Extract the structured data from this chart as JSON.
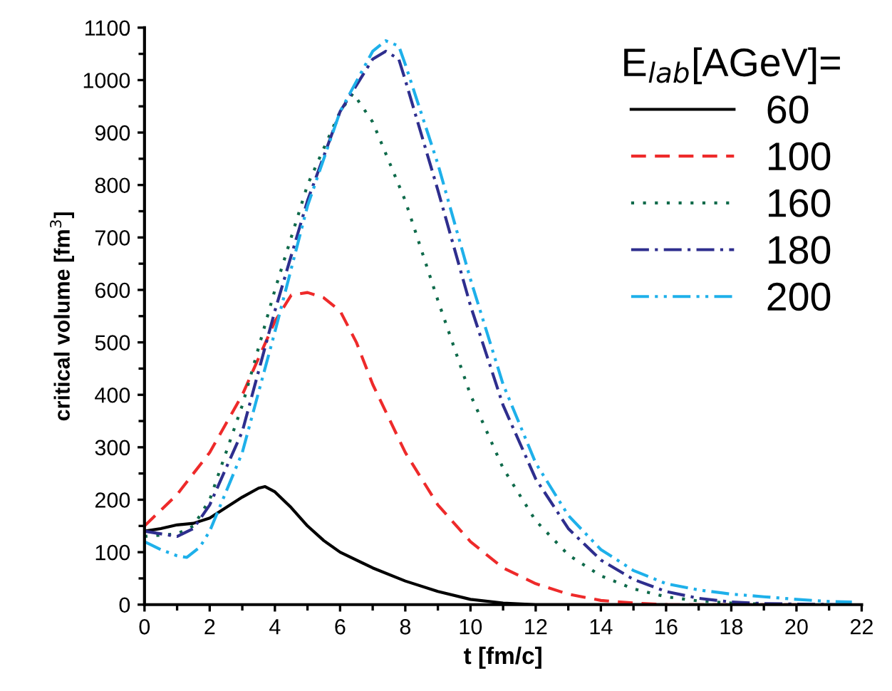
{
  "chart_data": {
    "type": "line",
    "xlabel": "t [fm/c]",
    "ylabel": "critical volume [fm$^{3}$]",
    "legend_title": "E$_{lab}$[AGeV]=",
    "legend": "top right",
    "xlim": [
      0,
      22
    ],
    "xticks": [
      0,
      2,
      4,
      6,
      8,
      10,
      12,
      14,
      16,
      18,
      20,
      22
    ],
    "ylim": [
      0,
      1100
    ],
    "yticks": [
      0,
      100,
      200,
      300,
      400,
      500,
      600,
      700,
      800,
      900,
      1000,
      1100
    ],
    "grid": false,
    "marker": "none",
    "series": [
      {
        "name": "60",
        "color": "#000000",
        "line_style": "solid",
        "x": [
          0,
          0.5,
          1,
          1.5,
          2,
          2.5,
          3,
          3.5,
          3.7,
          4,
          4.5,
          5,
          5.5,
          6,
          7,
          8,
          9,
          10,
          11,
          12,
          14,
          16
        ],
        "values": [
          140,
          145,
          152,
          155,
          165,
          185,
          205,
          222,
          225,
          215,
          185,
          150,
          122,
          100,
          70,
          45,
          25,
          10,
          3,
          0,
          0,
          0
        ]
      },
      {
        "name": "100",
        "color": "#ee2a2a",
        "line_style": "dashed",
        "x": [
          0,
          1,
          2,
          3,
          4,
          4.5,
          5,
          5.5,
          6,
          6.5,
          7,
          8,
          9,
          10,
          11,
          12,
          13,
          14,
          15,
          16,
          18,
          20
        ],
        "values": [
          150,
          210,
          290,
          400,
          540,
          590,
          595,
          585,
          560,
          500,
          420,
          290,
          190,
          120,
          70,
          40,
          20,
          8,
          3,
          0,
          0,
          0
        ]
      },
      {
        "name": "160",
        "color": "#0e6a4a",
        "line_style": "dotted",
        "x": [
          0,
          1,
          1.5,
          2,
          3,
          4,
          5,
          6,
          6.4,
          7,
          8,
          9,
          10,
          11,
          12,
          13,
          14,
          15,
          16,
          17,
          18,
          19,
          20,
          21
        ],
        "values": [
          130,
          135,
          150,
          200,
          380,
          600,
          800,
          940,
          975,
          920,
          770,
          580,
          400,
          260,
          160,
          95,
          55,
          30,
          15,
          7,
          3,
          1,
          0,
          0
        ]
      },
      {
        "name": "180",
        "color": "#2e2e8e",
        "line_style": "dashdot",
        "x": [
          0,
          0.5,
          1,
          1.5,
          2,
          3,
          4,
          5,
          6,
          7,
          7.4,
          7.8,
          8,
          9,
          10,
          11,
          12,
          13,
          14,
          15,
          16,
          17,
          18,
          19,
          20,
          21.5
        ],
        "values": [
          140,
          135,
          130,
          145,
          190,
          330,
          560,
          770,
          940,
          1040,
          1055,
          1040,
          1000,
          790,
          570,
          380,
          240,
          145,
          85,
          48,
          25,
          12,
          5,
          2,
          1,
          0
        ]
      },
      {
        "name": "200",
        "color": "#1eb0ea",
        "line_style": "dashdotdot",
        "x": [
          0,
          0.5,
          1,
          1.3,
          1.7,
          2,
          3,
          4,
          5,
          6,
          7,
          7.4,
          7.8,
          8,
          9,
          10,
          11,
          12,
          13,
          14,
          15,
          16,
          17,
          18,
          19,
          20,
          21,
          21.7
        ],
        "values": [
          120,
          105,
          93,
          90,
          110,
          140,
          290,
          520,
          760,
          940,
          1055,
          1075,
          1065,
          1030,
          840,
          620,
          420,
          270,
          170,
          105,
          65,
          40,
          28,
          20,
          15,
          10,
          6,
          5
        ]
      }
    ]
  }
}
